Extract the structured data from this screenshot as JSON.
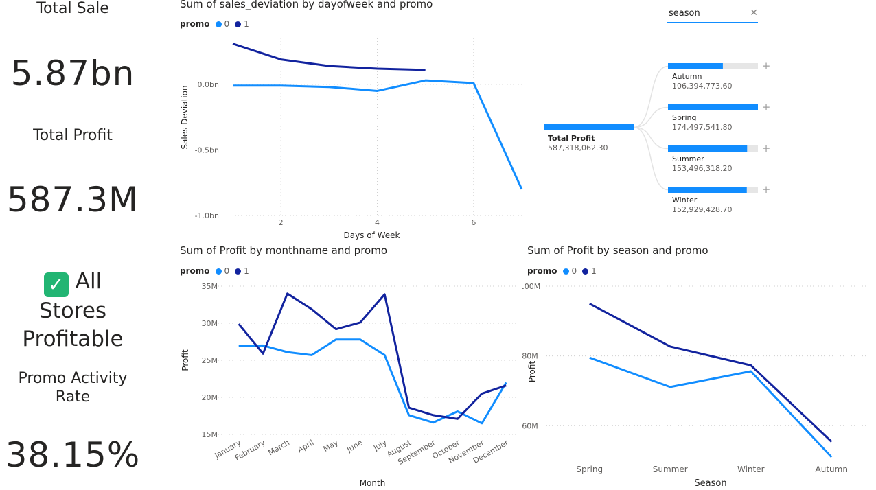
{
  "kpis": {
    "total_sale_label": "Total Sale",
    "total_sale_value": "5.87bn",
    "total_profit_label": "Total Profit",
    "total_profit_value": "587.3M",
    "status_icon": "check-mark-icon",
    "status_line1": "All",
    "status_line2": "Stores",
    "status_line3": "Profitable",
    "promo_rate_label_line1": "Promo Activity",
    "promo_rate_label_line2": "Rate",
    "promo_rate_value": "38.15%"
  },
  "colors": {
    "promo_0": "#118dff",
    "promo_1": "#12239e",
    "decomp_bar": "#118dff",
    "decomp_bg": "#e6e6e6"
  },
  "legend": {
    "title": "promo",
    "item0": "0",
    "item1": "1"
  },
  "chart_dow": {
    "title": "Sum of sales_deviation by dayofweek and promo",
    "chart_data": {
      "type": "line",
      "xlabel": "Days of Week",
      "ylabel": "Sales Deviation",
      "x_ticks": [
        "2",
        "4",
        "6"
      ],
      "y_ticks": [
        "0.0bn",
        "-0.5bn",
        "-1.0bn"
      ],
      "series": [
        {
          "name": "0",
          "x": [
            1,
            2,
            3,
            4,
            5,
            6,
            7
          ],
          "y": [
            -0.01,
            -0.01,
            -0.02,
            -0.05,
            0.03,
            0.01,
            -0.8
          ]
        },
        {
          "name": "1",
          "x": [
            1,
            2,
            3,
            4,
            5
          ],
          "y": [
            0.31,
            0.19,
            0.14,
            0.12,
            0.11
          ]
        }
      ],
      "xlim": [
        1,
        7
      ],
      "ylim": [
        -1.0,
        0.35
      ],
      "grid": true,
      "legend": "top-left"
    }
  },
  "chart_month": {
    "title": "Sum of Profit by monthname and promo",
    "chart_data": {
      "type": "line",
      "xlabel": "Month",
      "ylabel": "Profit",
      "categories": [
        "January",
        "February",
        "March",
        "April",
        "May",
        "June",
        "July",
        "August",
        "September",
        "October",
        "November",
        "December"
      ],
      "y_ticks": [
        "35M",
        "30M",
        "25M",
        "20M",
        "15M"
      ],
      "series": [
        {
          "name": "0",
          "values": [
            26.9,
            27.0,
            26.1,
            25.7,
            27.8,
            27.8,
            25.7,
            17.6,
            16.6,
            18.1,
            16.5,
            22.0
          ]
        },
        {
          "name": "1",
          "values": [
            29.9,
            25.9,
            34.0,
            31.9,
            29.2,
            30.1,
            33.9,
            18.6,
            17.6,
            17.1,
            20.5,
            21.6
          ]
        }
      ],
      "ylim": [
        15,
        35
      ],
      "grid": true,
      "legend": "top-left"
    }
  },
  "chart_season": {
    "title": "Sum of Profit by season and promo",
    "chart_data": {
      "type": "line",
      "xlabel": "Season",
      "ylabel": "Profit",
      "categories": [
        "Spring",
        "Summer",
        "Winter",
        "Autumn"
      ],
      "y_ticks": [
        "100M",
        "80M",
        "60M"
      ],
      "series": [
        {
          "name": "0",
          "values": [
            79.5,
            71.1,
            75.6,
            51.0
          ]
        },
        {
          "name": "1",
          "values": [
            95.0,
            82.7,
            77.3,
            55.4
          ]
        }
      ],
      "ylim": [
        51,
        100
      ],
      "grid": true,
      "legend": "top-left"
    }
  },
  "slicer": {
    "value": "season",
    "clear_icon": "close-icon"
  },
  "decomp": {
    "root_label": "Total Profit",
    "root_value": "587,318,062.30",
    "expand_icon": "plus-icon",
    "nodes": [
      {
        "label": "Autumn",
        "value": "106,394,773.60",
        "fraction": 0.61
      },
      {
        "label": "Spring",
        "value": "174,497,541.80",
        "fraction": 1.0
      },
      {
        "label": "Summer",
        "value": "153,496,318.20",
        "fraction": 0.88
      },
      {
        "label": "Winter",
        "value": "152,929,428.70",
        "fraction": 0.876
      }
    ]
  }
}
